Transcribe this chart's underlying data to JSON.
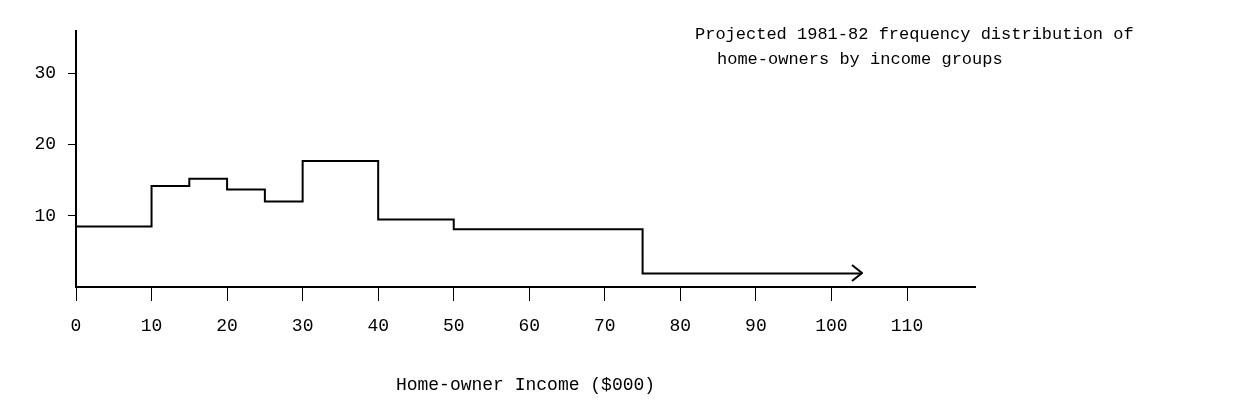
{
  "chart_data": {
    "type": "histogram",
    "bins": [
      0,
      10,
      15,
      20,
      25,
      30,
      40,
      50,
      75,
      104
    ],
    "values": [
      8.5,
      14.2,
      15.2,
      13.7,
      12.0,
      17.7,
      9.5,
      8.1,
      1.9
    ],
    "color": "#000000",
    "xlabel": "Home-owner Income ($000)",
    "xlim": [
      0,
      119
    ],
    "xticks": [
      0,
      10,
      20,
      30,
      40,
      50,
      60,
      70,
      80,
      90,
      100,
      110
    ],
    "ylim": [
      0,
      36
    ],
    "yticks": [
      10,
      20,
      30
    ],
    "grid": false,
    "legend": false,
    "annotations": [
      "Projected 1981-82 frequency distribution of home-owners by income groups"
    ]
  }
}
